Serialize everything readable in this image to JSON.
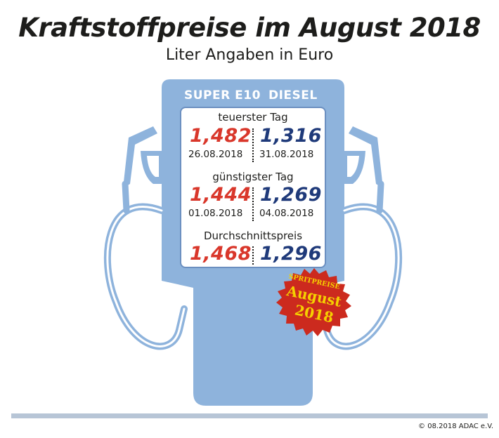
{
  "title": "Kraftstoffpreise im August 2018",
  "subtitle": "Liter Angaben in Euro",
  "columns": {
    "super": "SUPER E10",
    "diesel": "DIESEL"
  },
  "sections": [
    {
      "label": "teuerster Tag",
      "super_price": "1,482",
      "super_date": "26.08.2018",
      "diesel_price": "1,316",
      "diesel_date": "31.08.2018"
    },
    {
      "label": "günstigster Tag",
      "super_price": "1,444",
      "super_date": "01.08.2018",
      "diesel_price": "1,269",
      "diesel_date": "04.08.2018"
    },
    {
      "label": "Durchschnittspreis",
      "super_price": "1,468",
      "diesel_price": "1,296"
    }
  ],
  "badge": {
    "line1": "SPRITPREISE",
    "line2": "August",
    "line3": "2018"
  },
  "copyright": "© 08.2018  ADAC e.V.",
  "colors": {
    "pump": "#8eb3dc",
    "super": "#d9372b",
    "diesel": "#1f3a7a",
    "badge": "#cc2a1e",
    "badge_text": "#f5d000"
  },
  "icons": [
    "fuel-pump-icon",
    "left-nozzle-icon",
    "right-nozzle-icon",
    "price-badge-icon"
  ]
}
